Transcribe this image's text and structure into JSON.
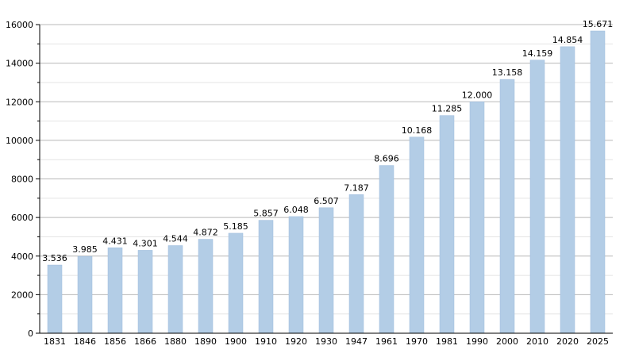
{
  "chart_data": {
    "type": "bar",
    "categories": [
      "1831",
      "1846",
      "1856",
      "1866",
      "1880",
      "1890",
      "1900",
      "1910",
      "1920",
      "1930",
      "1947",
      "1961",
      "1970",
      "1981",
      "1990",
      "2000",
      "2010",
      "2020",
      "2025"
    ],
    "values": [
      3536,
      3985,
      4431,
      4301,
      4544,
      4872,
      5185,
      5857,
      6048,
      6507,
      7187,
      8696,
      10168,
      11285,
      12000,
      13158,
      14159,
      14854,
      15671
    ],
    "data_labels": [
      "3.536",
      "3.985",
      "4.431",
      "4.301",
      "4.544",
      "4.872",
      "5.185",
      "5.857",
      "6.048",
      "6.507",
      "7.187",
      "8.696",
      "10.168",
      "11.285",
      "12.000",
      "13.158",
      "14.159",
      "14.854",
      "15.671"
    ],
    "yticks": [
      0,
      2000,
      4000,
      6000,
      8000,
      10000,
      12000,
      14000,
      16000
    ],
    "ylim": [
      0,
      16000
    ],
    "title": "",
    "xlabel": "",
    "ylabel": "",
    "grid": true,
    "legend": false,
    "colors": {
      "bar_fill": "#b3cde6",
      "bar_stroke": "#9dbcdc",
      "major_grid": "#b8b8b8",
      "minor_grid": "#e4e4e4",
      "axis": "#000000"
    }
  }
}
